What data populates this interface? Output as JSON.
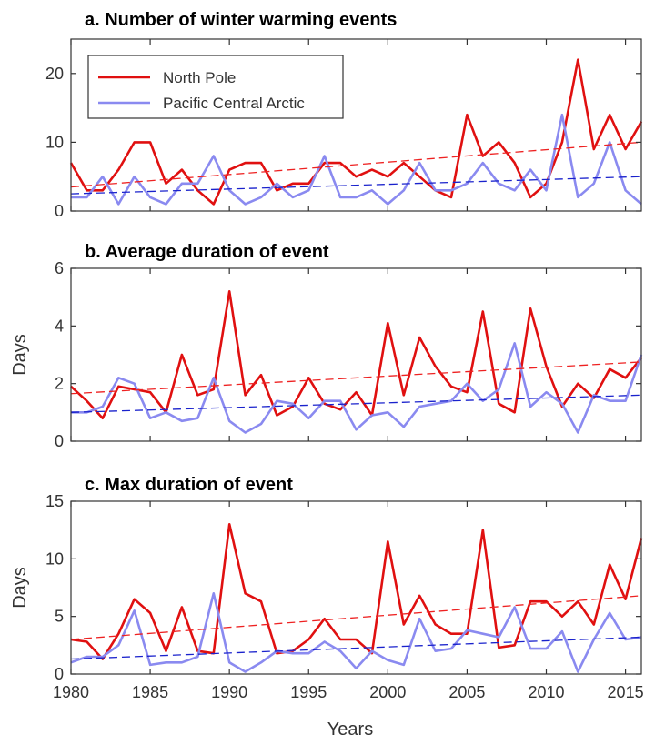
{
  "chart_data": [
    {
      "type": "line",
      "title": "a. Number of winter warming events",
      "ylabel": "",
      "xlim": [
        1980,
        2016
      ],
      "ylim": [
        0,
        25
      ],
      "yticks": [
        0,
        10,
        20
      ],
      "xticks": [
        1980,
        1985,
        1990,
        1995,
        2000,
        2005,
        2010,
        2015
      ],
      "x": [
        1980,
        1981,
        1982,
        1983,
        1984,
        1985,
        1986,
        1987,
        1988,
        1989,
        1990,
        1991,
        1992,
        1993,
        1994,
        1995,
        1996,
        1997,
        1998,
        1999,
        2000,
        2001,
        2002,
        2003,
        2004,
        2005,
        2006,
        2007,
        2008,
        2009,
        2010,
        2011,
        2012,
        2013,
        2014,
        2015,
        2016
      ],
      "series": [
        {
          "name": "North Pole",
          "color": "#e01010",
          "values": [
            7,
            3,
            3,
            6,
            10,
            10,
            4,
            6,
            3,
            1,
            6,
            7,
            7,
            3,
            4,
            4,
            7,
            7,
            5,
            6,
            5,
            7,
            5,
            3,
            2,
            14,
            8,
            10,
            7,
            2,
            4,
            10,
            22,
            9,
            14,
            9,
            13
          ],
          "trend": [
            3.5,
            10.0
          ]
        },
        {
          "name": "Pacific Central Arctic",
          "color": "#8a8af0",
          "values": [
            2,
            2,
            5,
            1,
            5,
            2,
            1,
            4,
            4,
            8,
            3,
            1,
            2,
            4,
            2,
            3,
            8,
            2,
            2,
            3,
            1,
            3,
            7,
            3,
            3,
            4,
            7,
            4,
            3,
            6,
            3,
            14,
            2,
            4,
            10,
            3,
            1
          ],
          "trend": [
            2.5,
            5.0
          ]
        }
      ],
      "legend": {
        "position": "top-left",
        "entries": [
          "North Pole",
          "Pacific Central Arctic"
        ]
      }
    },
    {
      "type": "line",
      "title": "b. Average duration of event",
      "ylabel": "Days",
      "xlim": [
        1980,
        2016
      ],
      "ylim": [
        0,
        6
      ],
      "yticks": [
        0,
        2,
        4,
        6
      ],
      "xticks": [
        1980,
        1985,
        1990,
        1995,
        2000,
        2005,
        2010,
        2015
      ],
      "x": [
        1980,
        1981,
        1982,
        1983,
        1984,
        1985,
        1986,
        1987,
        1988,
        1989,
        1990,
        1991,
        1992,
        1993,
        1994,
        1995,
        1996,
        1997,
        1998,
        1999,
        2000,
        2001,
        2002,
        2003,
        2004,
        2005,
        2006,
        2007,
        2008,
        2009,
        2010,
        2011,
        2012,
        2013,
        2014,
        2015,
        2016
      ],
      "series": [
        {
          "name": "North Pole",
          "color": "#e01010",
          "values": [
            1.9,
            1.4,
            0.8,
            1.9,
            1.8,
            1.7,
            1.0,
            3.0,
            1.6,
            1.8,
            5.2,
            1.6,
            2.3,
            0.9,
            1.2,
            2.2,
            1.3,
            1.1,
            1.7,
            0.9,
            4.1,
            1.6,
            3.6,
            2.6,
            1.9,
            1.7,
            4.5,
            1.3,
            1.0,
            4.6,
            2.6,
            1.2,
            2.0,
            1.5,
            2.5,
            2.2,
            2.9
          ],
          "trend": [
            1.65,
            2.75
          ]
        },
        {
          "name": "Pacific Central Arctic",
          "color": "#8a8af0",
          "values": [
            1.0,
            1.0,
            1.2,
            2.2,
            2.0,
            0.8,
            1.0,
            0.7,
            0.8,
            2.2,
            0.7,
            0.3,
            0.6,
            1.4,
            1.3,
            0.8,
            1.4,
            1.4,
            0.4,
            0.9,
            1.0,
            0.5,
            1.2,
            1.3,
            1.4,
            2.0,
            1.4,
            1.8,
            3.4,
            1.2,
            1.7,
            1.3,
            0.3,
            1.6,
            1.4,
            1.4,
            3.0
          ],
          "trend": [
            1.0,
            1.6
          ]
        }
      ]
    },
    {
      "type": "line",
      "title": "c. Max duration of event",
      "ylabel": "Days",
      "xlabel": "Years",
      "xlim": [
        1980,
        2016
      ],
      "ylim": [
        0,
        15
      ],
      "yticks": [
        0,
        5,
        10,
        15
      ],
      "xticks": [
        1980,
        1985,
        1990,
        1995,
        2000,
        2005,
        2010,
        2015
      ],
      "x": [
        1980,
        1981,
        1982,
        1983,
        1984,
        1985,
        1986,
        1987,
        1988,
        1989,
        1990,
        1991,
        1992,
        1993,
        1994,
        1995,
        1996,
        1997,
        1998,
        1999,
        2000,
        2001,
        2002,
        2003,
        2004,
        2005,
        2006,
        2007,
        2008,
        2009,
        2010,
        2011,
        2012,
        2013,
        2014,
        2015,
        2016
      ],
      "series": [
        {
          "name": "North Pole",
          "color": "#e01010",
          "values": [
            3.0,
            2.8,
            1.3,
            3.5,
            6.5,
            5.3,
            2.0,
            5.8,
            2.0,
            1.8,
            13.0,
            7.0,
            6.3,
            1.8,
            2.0,
            3.0,
            4.8,
            3.0,
            3.0,
            1.8,
            11.5,
            4.3,
            6.8,
            4.3,
            3.5,
            3.5,
            12.5,
            2.3,
            2.5,
            6.3,
            6.3,
            5.0,
            6.3,
            4.3,
            9.5,
            6.5,
            11.8
          ],
          "trend": [
            3.0,
            6.8
          ]
        },
        {
          "name": "Pacific Central Arctic",
          "color": "#8a8af0",
          "values": [
            1.0,
            1.5,
            1.5,
            2.5,
            5.5,
            0.8,
            1.0,
            1.0,
            1.5,
            7.0,
            1.0,
            0.2,
            1.0,
            2.0,
            1.8,
            1.8,
            2.8,
            2.0,
            0.5,
            2.0,
            1.2,
            0.8,
            4.8,
            2.0,
            2.2,
            3.8,
            3.5,
            3.2,
            5.8,
            2.2,
            2.2,
            3.7,
            0.2,
            3.0,
            5.3,
            3.0,
            3.2
          ],
          "trend": [
            1.3,
            3.2
          ]
        }
      ]
    }
  ]
}
